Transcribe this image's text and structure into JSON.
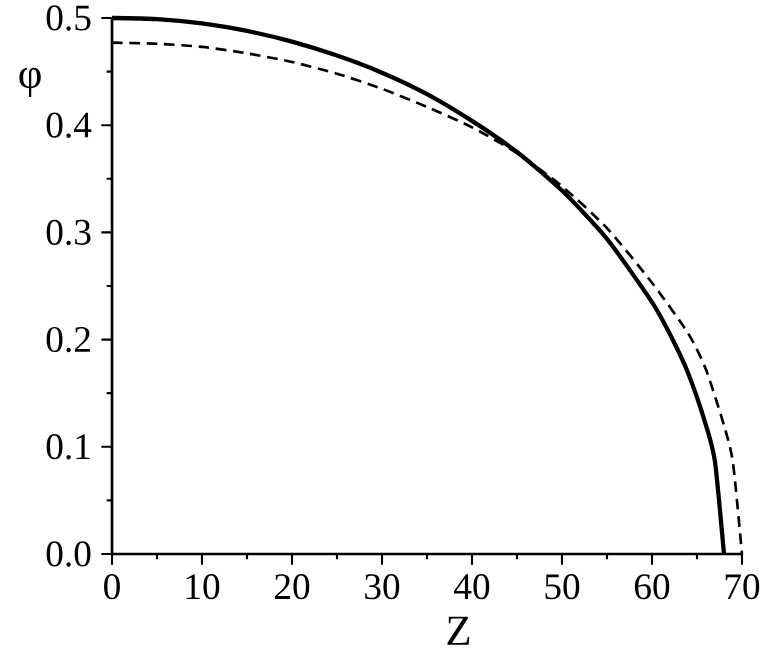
{
  "chart_data": {
    "type": "line",
    "xlabel": "Z",
    "ylabel": "φ",
    "xlim": [
      0,
      70
    ],
    "ylim": [
      0,
      0.5
    ],
    "xticks": [
      0,
      10,
      20,
      30,
      40,
      50,
      60,
      70
    ],
    "yticks": [
      {
        "value": 0,
        "label": "0.0"
      },
      0.1,
      0.2,
      0.3,
      0.4,
      0.5
    ],
    "grid": false,
    "marker": "none",
    "series": [
      {
        "color": "#000000",
        "line_style": "solid",
        "x": [
          0,
          5,
          10,
          15,
          20,
          25,
          30,
          35,
          40,
          45,
          50,
          55,
          60,
          62,
          64,
          66,
          67,
          68
        ],
        "values": [
          0.5,
          0.499,
          0.495,
          0.488,
          0.478,
          0.465,
          0.449,
          0.429,
          0.404,
          0.375,
          0.339,
          0.294,
          0.235,
          0.205,
          0.169,
          0.12,
          0.086,
          0
        ]
      },
      {
        "color": "#000000",
        "line_style": "dashed",
        "x": [
          0,
          5,
          10,
          15,
          20,
          25,
          30,
          35,
          40,
          45,
          50,
          55,
          60,
          64,
          66,
          68,
          69,
          70
        ],
        "values": [
          0.477,
          0.476,
          0.473,
          0.467,
          0.459,
          0.448,
          0.434,
          0.417,
          0.398,
          0.374,
          0.343,
          0.304,
          0.253,
          0.206,
          0.172,
          0.12,
          0.085,
          0
        ]
      }
    ]
  }
}
